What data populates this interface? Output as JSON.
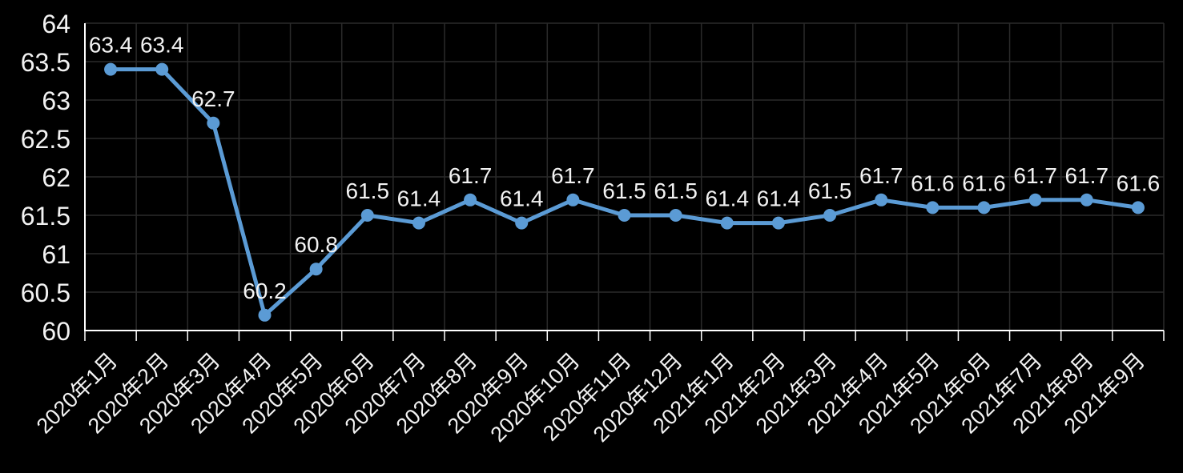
{
  "chart_data": {
    "type": "line",
    "categories": [
      "2020年1月",
      "2020年2月",
      "2020年3月",
      "2020年4月",
      "2020年5月",
      "2020年6月",
      "2020年7月",
      "2020年8月",
      "2020年9月",
      "2020年10月",
      "2020年11月",
      "2020年12月",
      "2021年1月",
      "2021年2月",
      "2021年3月",
      "2021年4月",
      "2021年5月",
      "2021年6月",
      "2021年7月",
      "2021年8月",
      "2021年9月"
    ],
    "series": [
      {
        "name": "",
        "values": [
          63.4,
          63.4,
          62.7,
          60.2,
          60.8,
          61.5,
          61.4,
          61.7,
          61.4,
          61.7,
          61.5,
          61.5,
          61.4,
          61.4,
          61.5,
          61.7,
          61.6,
          61.6,
          61.7,
          61.7,
          61.6
        ]
      }
    ],
    "data_labels": [
      "63.4",
      "63.4",
      "62.7",
      "60.2",
      "60.8",
      "61.5",
      "61.4",
      "61.7",
      "61.4",
      "61.7",
      "61.5",
      "61.5",
      "61.4",
      "61.4",
      "61.5",
      "61.7",
      "61.6",
      "61.6",
      "61.7",
      "61.7",
      "61.6"
    ],
    "ylim": [
      60,
      64
    ],
    "ytick_step": 0.5,
    "ytick_labels": [
      "64",
      "63.5",
      "63",
      "62.5",
      "62",
      "61.5",
      "61",
      "60.5",
      "60"
    ],
    "grid": true,
    "legend": false,
    "x_labels_rotation_deg": -45,
    "colors": {
      "background": "#000000",
      "series": "#5B9BD5",
      "grid": "#2A2A2A",
      "axis": "#FFFFFF",
      "text": "#F2F2F2"
    }
  }
}
